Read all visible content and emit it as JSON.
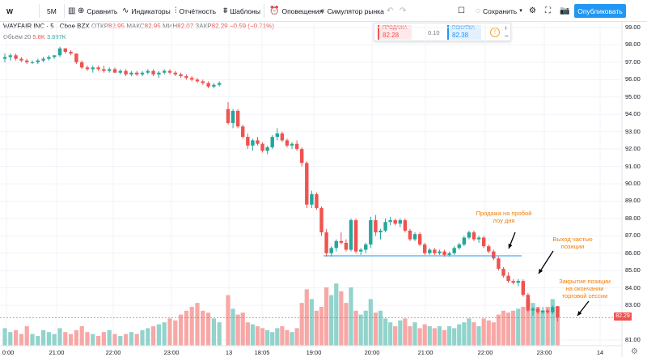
{
  "toolbar": {
    "symbol_search": "W",
    "interval": "5M",
    "compare": "Сравнить",
    "indicators": "Индикаторы",
    "financials": "Отчётность",
    "templates": "Шаблоны",
    "alerts": "Оповещения",
    "replay": "Симулятор рынка",
    "save": "Сохранить",
    "publish": "Опубликовать",
    "icons": [
      "plus-circle-icon",
      "indicators-icon",
      "bar-chart-icon",
      "templates-icon",
      "alarm-clock-icon",
      "replay-icon",
      "undo-icon",
      "redo-icon",
      "layout-icon",
      "cloud-icon",
      "chevron-down-icon",
      "gear-icon",
      "fullscreen-icon",
      "camera-icon"
    ]
  },
  "legend": {
    "title": "WAYFAIR INC",
    "interval": "5",
    "exchange": "Cboe BZX",
    "open_label": "ОТКР",
    "open": "82.95",
    "high_label": "МАКС",
    "high": "82.95",
    "low_label": "МИН",
    "low": "82.07",
    "close_label": "ЗАКР",
    "close": "82.29",
    "change": "−0.59 (−0.71%)"
  },
  "volume_legend": {
    "label": "Объём 20",
    "v1": "5.8K",
    "v2": "3.697K"
  },
  "trade_panel": {
    "sell_label": "ПРОДАЖА",
    "sell": "82.28",
    "spread": "0.10",
    "buy_label": "ПОКУПКА",
    "buy": "82.38",
    "plus": "+",
    "minus": "−"
  },
  "price_axis": {
    "ticks": [
      "99.00",
      "98.00",
      "97.00",
      "96.00",
      "95.00",
      "94.00",
      "93.00",
      "92.00",
      "91.00",
      "90.00",
      "89.00",
      "88.00",
      "87.00",
      "86.00",
      "85.00",
      "84.00",
      "83.00",
      "81.00"
    ],
    "last_price": "82.29"
  },
  "time_axis": {
    "ticks": [
      "0:00",
      "21:00",
      "22:00",
      "23:00",
      "13",
      "18:05",
      "19:00",
      "20:00",
      "21:00",
      "22:00",
      "23:00",
      "14"
    ]
  },
  "annotations": [
    {
      "lines": [
        "Продажа на пробой",
        "лоу дня"
      ]
    },
    {
      "lines": [
        "Выход частью",
        "позиции"
      ]
    },
    {
      "lines": [
        "Закрытие позиции",
        "на окончании",
        "торговой сессии"
      ]
    }
  ],
  "colors": {
    "up": "#26a69a",
    "down": "#ef5350",
    "vol_up": "#92d3cc",
    "vol_down": "#f7a8a6",
    "support_line": "#2196f3",
    "annotation": "#f57c00",
    "accent": "#2196f3"
  },
  "chart_data": {
    "type": "candlestick",
    "title": "WAYFAIR INC · 5 · Cboe BZX",
    "ylim": [
      80.5,
      99.4
    ],
    "support_level": 85.85,
    "last_price": 82.29,
    "candles": [
      [
        97.2,
        97.5,
        97.0,
        97.3
      ],
      [
        97.3,
        97.5,
        97.1,
        97.4
      ],
      [
        97.4,
        97.5,
        97.1,
        97.2
      ],
      [
        97.2,
        97.3,
        97.0,
        97.1
      ],
      [
        97.1,
        97.2,
        96.9,
        97.0
      ],
      [
        97.0,
        97.1,
        96.9,
        97.0
      ],
      [
        97.0,
        97.2,
        96.9,
        97.1
      ],
      [
        97.1,
        97.3,
        97.0,
        97.2
      ],
      [
        97.2,
        97.4,
        97.1,
        97.3
      ],
      [
        97.3,
        97.4,
        97.2,
        97.4
      ],
      [
        97.4,
        97.9,
        97.3,
        97.8
      ],
      [
        97.8,
        97.8,
        97.5,
        97.6
      ],
      [
        97.6,
        97.7,
        97.4,
        97.5
      ],
      [
        97.5,
        97.5,
        96.9,
        97.0
      ],
      [
        97.0,
        97.1,
        96.6,
        96.7
      ],
      [
        96.7,
        96.8,
        96.5,
        96.6
      ],
      [
        96.6,
        96.8,
        96.4,
        96.7
      ],
      [
        96.7,
        96.8,
        96.5,
        96.6
      ],
      [
        96.6,
        96.8,
        96.4,
        96.5
      ],
      [
        96.5,
        96.7,
        96.4,
        96.6
      ],
      [
        96.6,
        96.7,
        96.4,
        96.4
      ],
      [
        96.4,
        96.6,
        96.3,
        96.5
      ],
      [
        96.5,
        96.6,
        96.2,
        96.3
      ],
      [
        96.3,
        96.5,
        96.2,
        96.4
      ],
      [
        96.4,
        96.5,
        96.2,
        96.3
      ],
      [
        96.3,
        96.5,
        96.2,
        96.4
      ],
      [
        96.4,
        96.6,
        96.3,
        96.5
      ],
      [
        96.5,
        96.6,
        96.2,
        96.3
      ],
      [
        96.3,
        96.5,
        96.1,
        96.4
      ],
      [
        96.4,
        96.6,
        96.3,
        96.5
      ],
      [
        96.5,
        96.6,
        96.3,
        96.4
      ],
      [
        96.4,
        96.5,
        96.2,
        96.3
      ],
      [
        96.3,
        96.4,
        96.1,
        96.2
      ],
      [
        96.2,
        96.3,
        96.0,
        96.1
      ],
      [
        96.1,
        96.2,
        95.9,
        96.0
      ],
      [
        96.0,
        96.1,
        95.8,
        95.9
      ],
      [
        95.9,
        96.0,
        95.7,
        95.8
      ],
      [
        95.8,
        95.9,
        95.5,
        95.6
      ],
      [
        95.6,
        95.8,
        95.5,
        95.7
      ],
      [
        95.7,
        95.9,
        95.6,
        95.8
      ],
      [
        94.3,
        94.7,
        93.4,
        93.5
      ],
      [
        93.5,
        94.3,
        93.2,
        94.2
      ],
      [
        94.2,
        94.3,
        93.2,
        93.3
      ],
      [
        93.3,
        93.4,
        92.6,
        92.7
      ],
      [
        92.7,
        92.9,
        92.0,
        92.2
      ],
      [
        92.2,
        92.6,
        91.9,
        92.5
      ],
      [
        92.5,
        92.7,
        92.2,
        92.3
      ],
      [
        92.3,
        92.4,
        91.8,
        91.9
      ],
      [
        91.9,
        92.2,
        91.7,
        92.1
      ],
      [
        92.1,
        92.8,
        92.0,
        92.7
      ],
      [
        92.7,
        93.2,
        92.5,
        92.9
      ],
      [
        92.9,
        93.0,
        92.4,
        92.5
      ],
      [
        92.5,
        92.6,
        92.1,
        92.2
      ],
      [
        92.2,
        92.4,
        92.0,
        92.3
      ],
      [
        92.3,
        92.5,
        91.9,
        92.0
      ],
      [
        92.0,
        92.1,
        91.0,
        91.2
      ],
      [
        91.2,
        91.3,
        88.6,
        88.8
      ],
      [
        88.8,
        89.6,
        88.6,
        89.4
      ],
      [
        89.4,
        89.5,
        88.5,
        88.6
      ],
      [
        88.6,
        88.7,
        87.0,
        87.2
      ],
      [
        87.2,
        87.4,
        85.8,
        86.0
      ],
      [
        86.0,
        86.4,
        85.8,
        86.3
      ],
      [
        86.3,
        86.8,
        86.1,
        86.7
      ],
      [
        86.7,
        87.2,
        86.5,
        86.6
      ],
      [
        86.6,
        86.8,
        86.1,
        86.2
      ],
      [
        86.2,
        88.0,
        86.1,
        87.9
      ],
      [
        87.9,
        88.0,
        86.0,
        86.1
      ],
      [
        86.1,
        86.3,
        85.9,
        86.2
      ],
      [
        86.2,
        86.6,
        86.0,
        86.5
      ],
      [
        86.5,
        88.1,
        86.3,
        87.9
      ],
      [
        87.9,
        88.2,
        87.0,
        87.2
      ],
      [
        87.2,
        87.4,
        86.8,
        87.3
      ],
      [
        87.3,
        88.0,
        87.2,
        87.8
      ],
      [
        87.8,
        88.1,
        87.6,
        87.9
      ],
      [
        87.9,
        88.0,
        87.6,
        87.7
      ],
      [
        87.7,
        88.0,
        87.5,
        87.9
      ],
      [
        87.9,
        88.0,
        87.2,
        87.3
      ],
      [
        87.3,
        87.4,
        86.7,
        86.8
      ],
      [
        86.8,
        87.2,
        86.7,
        87.1
      ],
      [
        87.1,
        87.2,
        86.4,
        86.5
      ],
      [
        86.5,
        86.6,
        85.9,
        86.0
      ],
      [
        86.0,
        86.3,
        85.9,
        86.2
      ],
      [
        86.2,
        86.3,
        85.9,
        86.0
      ],
      [
        86.0,
        86.2,
        85.9,
        86.1
      ],
      [
        86.1,
        86.2,
        85.8,
        85.9
      ],
      [
        85.9,
        86.1,
        85.8,
        86.0
      ],
      [
        86.0,
        86.4,
        85.9,
        86.3
      ],
      [
        86.3,
        86.6,
        86.2,
        86.5
      ],
      [
        86.5,
        87.0,
        86.4,
        86.9
      ],
      [
        86.9,
        87.3,
        86.8,
        87.2
      ],
      [
        87.2,
        87.3,
        86.7,
        86.8
      ],
      [
        86.8,
        87.0,
        86.6,
        86.9
      ],
      [
        86.9,
        87.0,
        86.3,
        86.4
      ],
      [
        86.4,
        86.5,
        86.0,
        86.1
      ],
      [
        86.1,
        86.2,
        85.6,
        85.7
      ],
      [
        85.7,
        85.8,
        85.0,
        85.1
      ],
      [
        85.1,
        85.2,
        84.6,
        84.7
      ],
      [
        84.7,
        84.9,
        84.3,
        84.4
      ],
      [
        84.4,
        84.5,
        84.2,
        84.3
      ],
      [
        84.3,
        84.5,
        84.1,
        84.4
      ],
      [
        84.4,
        84.5,
        83.5,
        83.6
      ],
      [
        83.6,
        83.7,
        82.6,
        82.7
      ],
      [
        82.7,
        82.9,
        82.4,
        82.8
      ],
      [
        82.8,
        82.9,
        82.5,
        82.6
      ],
      [
        82.6,
        82.9,
        82.5,
        82.7
      ],
      [
        82.7,
        82.8,
        82.5,
        82.6
      ],
      [
        82.6,
        83.0,
        82.5,
        82.9
      ],
      [
        82.95,
        82.95,
        82.07,
        82.29
      ]
    ],
    "volume": [
      0.45,
      0.35,
      0.4,
      0.3,
      0.5,
      0.3,
      0.25,
      0.4,
      0.35,
      0.3,
      0.45,
      0.35,
      0.3,
      0.4,
      0.5,
      0.35,
      0.3,
      0.25,
      0.35,
      0.4,
      0.3,
      0.25,
      0.3,
      0.35,
      0.3,
      0.4,
      0.45,
      0.5,
      0.55,
      0.6,
      0.7,
      0.65,
      0.8,
      0.9,
      1.0,
      1.1,
      0.9,
      0.85,
      0.7,
      0.6,
      1.3,
      0.95,
      0.8,
      0.85,
      0.6,
      0.55,
      0.5,
      0.45,
      0.4,
      0.35,
      0.45,
      0.5,
      0.4,
      0.35,
      0.45,
      1.1,
      1.45,
      1.2,
      0.9,
      1.0,
      1.5,
      1.3,
      1.6,
      1.4,
      1.1,
      1.5,
      0.9,
      0.8,
      0.9,
      1.2,
      0.85,
      0.9,
      0.7,
      0.6,
      0.5,
      0.65,
      0.7,
      0.5,
      0.6,
      0.45,
      0.55,
      0.5,
      0.45,
      0.5,
      0.4,
      0.5,
      0.45,
      0.55,
      0.6,
      0.7,
      0.6,
      0.5,
      0.7,
      0.65,
      0.6,
      0.8,
      0.9,
      0.85,
      0.9,
      0.95,
      1.0,
      1.2,
      1.1,
      1.0,
      0.9,
      1.0,
      1.2,
      1.0
    ]
  }
}
